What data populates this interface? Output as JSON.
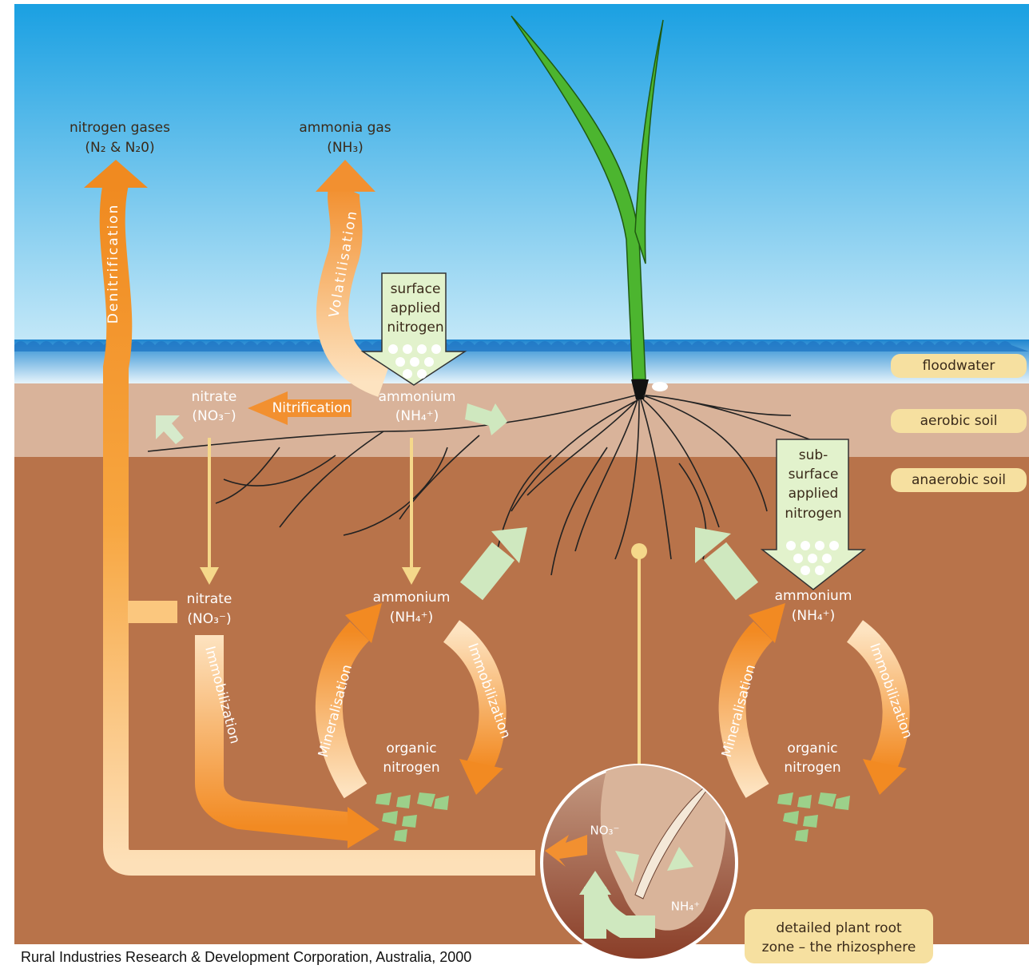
{
  "atmosphere": {
    "nitrogen_gases": [
      "nitrogen gases",
      "(N₂ & N₂0)"
    ],
    "ammonia_gas": [
      "ammonia gas",
      "(NH₃)"
    ]
  },
  "processes": {
    "denitrification": "Denitrification",
    "volatilisation": "Volatilisation",
    "nitrification": "Nitrification",
    "immobilization_left": "Immobilization",
    "mineralisation_center": "Mineralisation",
    "immobilization_center": "Immobilization",
    "mineralisation_right": "Mineralisation",
    "immobilization_right": "Immobilization"
  },
  "inputs": {
    "surface": [
      "surface",
      "applied",
      "nitrogen"
    ],
    "subsurface": [
      "sub-",
      "surface",
      "applied",
      "nitrogen"
    ]
  },
  "compounds": {
    "nitrate_aerobic": [
      "nitrate",
      "(NO₃⁻)"
    ],
    "ammonium_aerobic": [
      "ammonium",
      "(NH₄⁺)"
    ],
    "nitrate_anaerobic": [
      "nitrate",
      "(NO₃⁻)"
    ],
    "ammonium_center": [
      "ammonium",
      "(NH₄⁺)"
    ],
    "organic_center": [
      "organic",
      "nitrogen"
    ],
    "ammonium_right": [
      "ammonium",
      "(NH₄⁺)"
    ],
    "organic_right": [
      "organic",
      "nitrogen"
    ],
    "rhizo_nitrate": "NO₃⁻",
    "rhizo_ammonium": "NH₄⁺"
  },
  "layers": [
    "floodwater",
    "aerobic soil",
    "anaerobic soil"
  ],
  "rhizosphere_caption": [
    "detailed plant root",
    "zone – the rhizosphere"
  ],
  "citation": "Rural Industries Research & Development Corporation, Australia, 2000"
}
